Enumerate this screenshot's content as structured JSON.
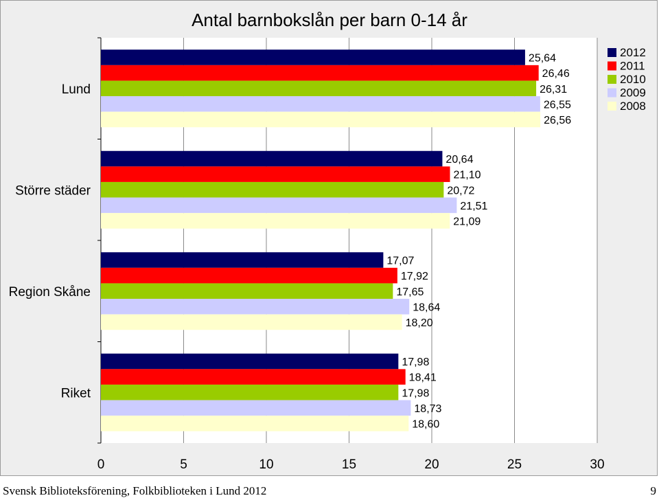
{
  "chart_data": {
    "type": "bar",
    "orientation": "horizontal",
    "title": "Antal barnbokslån per barn 0-14 år",
    "categories": [
      "Lund",
      "Större städer",
      "Region Skåne",
      "Riket"
    ],
    "series": [
      {
        "name": "2012",
        "color": "#000066",
        "values": [
          25.64,
          20.64,
          17.07,
          17.98
        ],
        "labels": [
          "25,64",
          "20,64",
          "17,07",
          "17,98"
        ]
      },
      {
        "name": "2011",
        "color": "#ff0000",
        "values": [
          26.46,
          21.1,
          17.92,
          18.41
        ],
        "labels": [
          "26,46",
          "21,10",
          "17,92",
          "18,41"
        ]
      },
      {
        "name": "2010",
        "color": "#99cc00",
        "values": [
          26.31,
          20.72,
          17.65,
          17.98
        ],
        "labels": [
          "26,31",
          "20,72",
          "17,65",
          "17,98"
        ]
      },
      {
        "name": "2009",
        "color": "#ccccff",
        "values": [
          26.55,
          21.51,
          18.64,
          18.73
        ],
        "labels": [
          "26,55",
          "21,51",
          "18,64",
          "18,73"
        ]
      },
      {
        "name": "2008",
        "color": "#ffffcc",
        "values": [
          26.56,
          21.09,
          18.2,
          18.6
        ],
        "labels": [
          "26,56",
          "21,09",
          "18,20",
          "18,60"
        ]
      }
    ],
    "xlim": [
      0,
      30
    ],
    "xticks": [
      "0",
      "5",
      "10",
      "15",
      "20",
      "25",
      "30"
    ],
    "grid": true,
    "legend": "top-right"
  },
  "footer": {
    "source": "Svensk Biblioteksförening, Folkbiblioteken i Lund 2012",
    "page_number": "9"
  }
}
